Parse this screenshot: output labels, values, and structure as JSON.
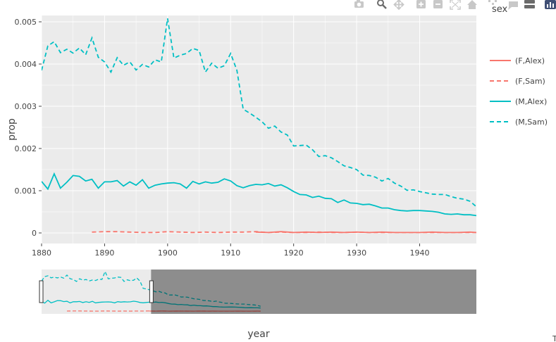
{
  "modebar": {
    "buttons": [
      "camera-icon",
      "zoom-icon",
      "pan-icon",
      "zoom-in-icon",
      "zoom-out-icon",
      "autoscale-icon",
      "home-icon",
      "spike-icon",
      "hover-closest-icon",
      "hover-compare-icon",
      "plotly-logo-icon"
    ]
  },
  "corner_text": "T",
  "chart_data": {
    "type": "line",
    "xlabel": "year",
    "ylabel": "prop",
    "xlim": [
      1880,
      1949
    ],
    "ylim": [
      -0.00025,
      0.00515
    ],
    "x_ticks": [
      1880,
      1890,
      1900,
      1910,
      1920,
      1930,
      1940
    ],
    "x_tick_labels": [
      "1880",
      "1890",
      "1900",
      "1910",
      "1920",
      "1930",
      "1940"
    ],
    "y_ticks": [
      0,
      0.001,
      0.002,
      0.003,
      0.004,
      0.005
    ],
    "y_tick_labels": [
      "0",
      "0.001",
      "0.002",
      "0.003",
      "0.004",
      "0.005"
    ],
    "grid": true,
    "legend_title": "sex",
    "legend_position": "right",
    "rangeslider": {
      "visible": true,
      "range": [
        1880,
        1914.5
      ],
      "full_range": [
        1880,
        2017
      ]
    },
    "series": [
      {
        "name": "(F,Alex)",
        "color": "#F8766D",
        "dash": "solid",
        "x": [
          1914,
          1916,
          1918,
          1920,
          1922,
          1924,
          1926,
          1928,
          1930,
          1932,
          1934,
          1936,
          1938,
          1940,
          1942,
          1944,
          1946,
          1948,
          1949
        ],
        "y": [
          2e-05,
          1e-05,
          3e-05,
          1e-05,
          2e-05,
          1e-05,
          2e-05,
          1e-05,
          2e-05,
          1e-05,
          2e-05,
          1e-05,
          1e-05,
          1e-05,
          2e-05,
          1e-05,
          1e-05,
          2e-05,
          1e-05
        ]
      },
      {
        "name": "(F,Sam)",
        "color": "#F8766D",
        "dash": "dash",
        "x": [
          1888,
          1890,
          1892,
          1894,
          1896,
          1898,
          1900,
          1902,
          1904,
          1906,
          1908,
          1910,
          1912,
          1914,
          1916,
          1918,
          1920,
          1922,
          1924,
          1926,
          1928,
          1930,
          1932,
          1934,
          1936,
          1938,
          1940,
          1942,
          1944,
          1946,
          1948,
          1949
        ],
        "y": [
          2e-05,
          3e-05,
          3e-05,
          2e-05,
          1e-05,
          1e-05,
          3e-05,
          2e-05,
          1e-05,
          2e-05,
          1e-05,
          2e-05,
          2e-05,
          3e-05,
          1e-05,
          2e-05,
          1e-05,
          1e-05,
          2e-05,
          1e-05,
          1e-05,
          2e-05,
          1e-05,
          1e-05,
          1e-05,
          1e-05,
          1e-05,
          1e-05,
          1e-05,
          1e-05,
          1e-05,
          1e-05
        ]
      },
      {
        "name": "(M,Alex)",
        "color": "#00BFC4",
        "dash": "solid",
        "x": [
          1880,
          1881,
          1882,
          1883,
          1884,
          1885,
          1886,
          1887,
          1888,
          1889,
          1890,
          1891,
          1892,
          1893,
          1894,
          1895,
          1896,
          1897,
          1898,
          1899,
          1900,
          1901,
          1902,
          1903,
          1904,
          1905,
          1906,
          1907,
          1908,
          1909,
          1910,
          1911,
          1912,
          1913,
          1914,
          1915,
          1916,
          1917,
          1918,
          1919,
          1920,
          1921,
          1922,
          1923,
          1924,
          1925,
          1926,
          1927,
          1928,
          1929,
          1930,
          1931,
          1932,
          1933,
          1934,
          1935,
          1936,
          1937,
          1938,
          1939,
          1940,
          1941,
          1942,
          1943,
          1944,
          1945,
          1946,
          1947,
          1948,
          1949
        ],
        "y": [
          0.00122,
          0.00104,
          0.0014,
          0.00106,
          0.0012,
          0.00136,
          0.00134,
          0.00123,
          0.00127,
          0.00106,
          0.00121,
          0.00121,
          0.00124,
          0.00111,
          0.00121,
          0.00113,
          0.00126,
          0.00106,
          0.00113,
          0.00116,
          0.00118,
          0.00119,
          0.00116,
          0.00106,
          0.00122,
          0.00116,
          0.00121,
          0.00118,
          0.0012,
          0.00128,
          0.00123,
          0.00112,
          0.00107,
          0.00112,
          0.00115,
          0.00114,
          0.00117,
          0.00111,
          0.00114,
          0.00107,
          0.00098,
          0.00091,
          0.0009,
          0.00084,
          0.00087,
          0.00082,
          0.00081,
          0.00072,
          0.00078,
          0.00071,
          0.0007,
          0.00067,
          0.00068,
          0.00064,
          0.00059,
          0.00059,
          0.00055,
          0.00053,
          0.00052,
          0.00053,
          0.00053,
          0.00052,
          0.00051,
          0.00049,
          0.00045,
          0.00044,
          0.00045,
          0.00043,
          0.00043,
          0.00041
        ]
      },
      {
        "name": "(M,Sam)",
        "color": "#00BFC4",
        "dash": "dash",
        "x": [
          1880,
          1881,
          1882,
          1883,
          1884,
          1885,
          1886,
          1887,
          1888,
          1889,
          1890,
          1891,
          1892,
          1893,
          1894,
          1895,
          1896,
          1897,
          1898,
          1899,
          1900,
          1901,
          1902,
          1903,
          1904,
          1905,
          1906,
          1907,
          1908,
          1909,
          1910,
          1911,
          1912,
          1913,
          1914,
          1915,
          1916,
          1917,
          1918,
          1919,
          1920,
          1921,
          1922,
          1923,
          1924,
          1925,
          1926,
          1927,
          1928,
          1929,
          1930,
          1931,
          1932,
          1933,
          1934,
          1935,
          1936,
          1937,
          1938,
          1939,
          1940,
          1941,
          1942,
          1943,
          1944,
          1945,
          1946,
          1947,
          1948,
          1949
        ],
        "y": [
          0.00385,
          0.00443,
          0.00453,
          0.00427,
          0.00435,
          0.00426,
          0.00438,
          0.00422,
          0.00462,
          0.00416,
          0.00405,
          0.00381,
          0.00415,
          0.00397,
          0.00405,
          0.00386,
          0.00399,
          0.00393,
          0.0041,
          0.00405,
          0.00508,
          0.00414,
          0.00421,
          0.00425,
          0.00437,
          0.00432,
          0.00381,
          0.00402,
          0.0039,
          0.00396,
          0.00425,
          0.00385,
          0.00293,
          0.00284,
          0.00274,
          0.00263,
          0.00248,
          0.00253,
          0.00239,
          0.00232,
          0.00206,
          0.00207,
          0.00208,
          0.00197,
          0.00181,
          0.00183,
          0.00178,
          0.00169,
          0.00159,
          0.00155,
          0.0015,
          0.00137,
          0.00136,
          0.00132,
          0.00123,
          0.00129,
          0.00118,
          0.00111,
          0.00101,
          0.00102,
          0.00098,
          0.00095,
          0.00092,
          0.00091,
          0.00091,
          0.00086,
          0.00082,
          0.0008,
          0.00075,
          0.00062
        ]
      }
    ]
  }
}
